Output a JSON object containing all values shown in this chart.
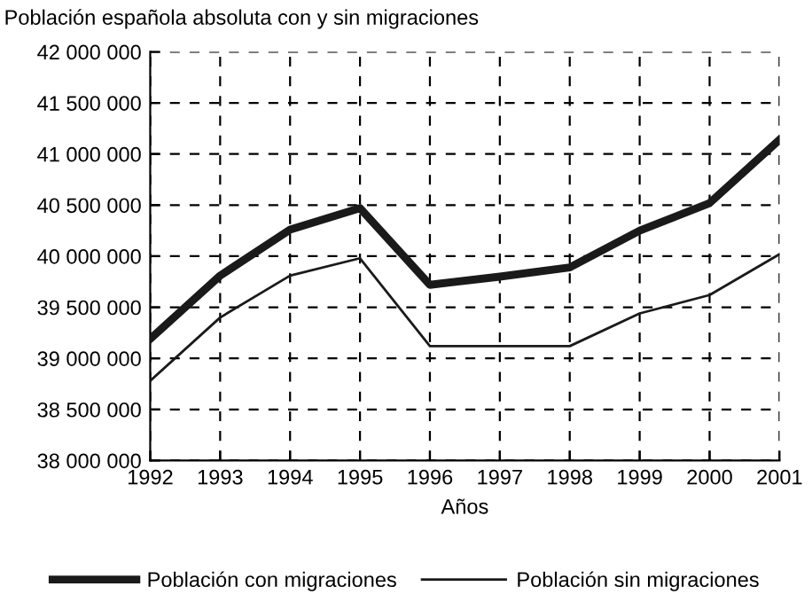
{
  "chart_data": {
    "type": "line",
    "title": "Población española absoluta con y sin migraciones",
    "xlabel": "Años",
    "categories": [
      "1992",
      "1993",
      "1994",
      "1995",
      "1996",
      "1997",
      "1998",
      "1999",
      "2000",
      "2001"
    ],
    "series": [
      {
        "name": "Población con migraciones",
        "color": "#1a1a1a",
        "values": [
          39190000,
          39810000,
          40260000,
          40470000,
          39720000,
          39800000,
          39890000,
          40250000,
          40520000,
          41140000
        ]
      },
      {
        "name": "Población sin migraciones",
        "color": "#1a1a1a",
        "values": [
          38780000,
          39400000,
          39810000,
          39980000,
          39120000,
          39120000,
          39120000,
          39440000,
          39620000,
          40020000
        ]
      }
    ],
    "ylim": [
      38000000,
      42000000
    ],
    "yticks": [
      {
        "value": 38000000,
        "label": "38 000 000"
      },
      {
        "value": 38500000,
        "label": "38 500 000"
      },
      {
        "value": 39000000,
        "label": "39 000 000"
      },
      {
        "value": 39500000,
        "label": "39 500 000"
      },
      {
        "value": 40000000,
        "label": "40 000 000"
      },
      {
        "value": 40500000,
        "label": "40 500 000"
      },
      {
        "value": 41000000,
        "label": "41 000 000"
      },
      {
        "value": 41500000,
        "label": "41 500 000"
      },
      {
        "value": 42000000,
        "label": "42 000 000"
      }
    ],
    "grid": true,
    "legend": "bottom",
    "marker": "none",
    "line_style": "solid"
  }
}
